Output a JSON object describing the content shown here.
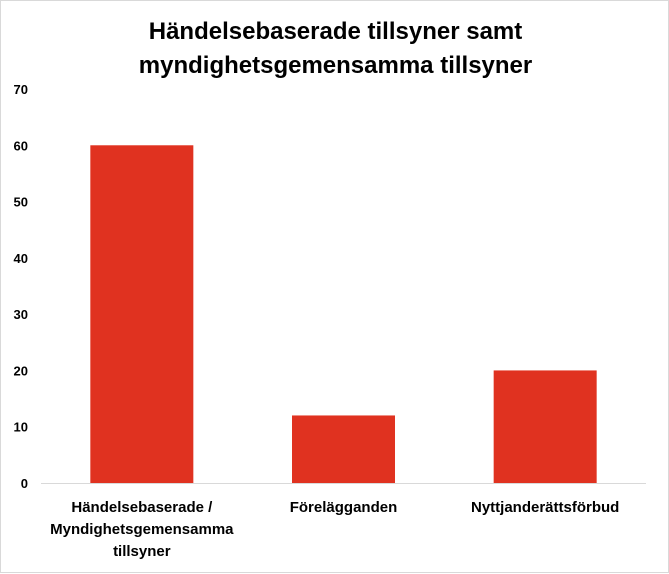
{
  "chart_data": {
    "type": "bar",
    "title_lines": [
      "Händelsebaserade tillsyner samt",
      "myndighetsgemensamma tillsyner"
    ],
    "categories": [
      [
        "Händelsebaserade /",
        "Myndighetsgemensamma",
        "tillsyner"
      ],
      [
        "Förelägganden"
      ],
      [
        "Nyttjanderättsförbud"
      ]
    ],
    "values": [
      60,
      12,
      20
    ],
    "ylim": [
      0,
      70
    ],
    "yticks": [
      0,
      10,
      20,
      30,
      40,
      50,
      60,
      70
    ],
    "grid": false,
    "legend": "none",
    "bar_color": "#e03220",
    "xlabel": "",
    "ylabel": ""
  }
}
